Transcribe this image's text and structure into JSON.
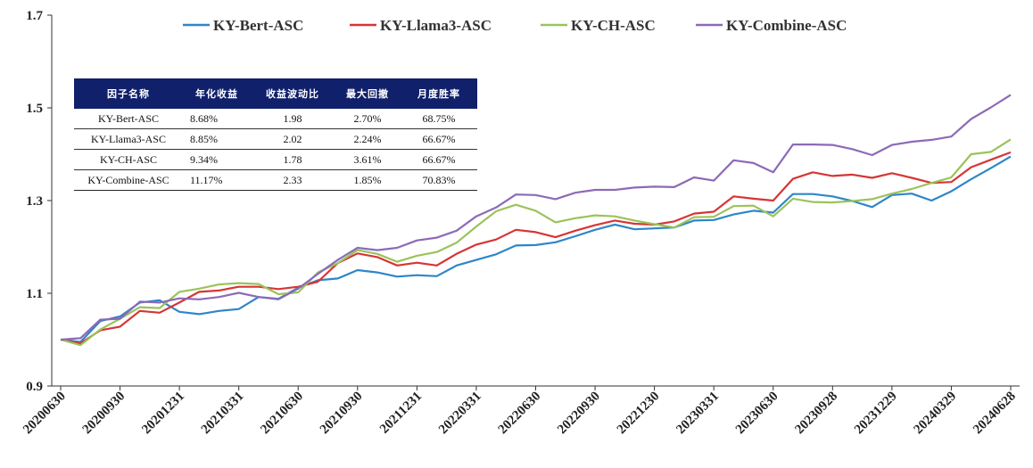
{
  "chart_data": {
    "type": "line",
    "title": "",
    "xlabel": "",
    "ylabel": "",
    "ylim": [
      0.9,
      1.7
    ],
    "yticks": [
      0.9,
      1.1,
      1.3,
      1.5,
      1.7
    ],
    "ytick_labels": [
      "0.9",
      "1.1",
      "1.3",
      "1.5",
      "1.7"
    ],
    "xtick_labels": [
      "20200630",
      "20200930",
      "20201231",
      "20210331",
      "20210630",
      "20210930",
      "20211231",
      "20220331",
      "20220630",
      "20220930",
      "20221230",
      "20230331",
      "20230630",
      "20230928",
      "20231229",
      "20240329",
      "20240628"
    ],
    "legend_position": "top",
    "grid": false,
    "n_points": 49,
    "series": [
      {
        "name": "KY-Bert-ASC",
        "color": "#2e86c8",
        "values": [
          1.0,
          0.995,
          1.04,
          1.05,
          1.08,
          1.085,
          1.06,
          1.055,
          1.062,
          1.066,
          1.092,
          1.088,
          1.112,
          1.128,
          1.132,
          1.15,
          1.145,
          1.136,
          1.139,
          1.137,
          1.16,
          1.172,
          1.184,
          1.203,
          1.204,
          1.21,
          1.223,
          1.237,
          1.248,
          1.238,
          1.24,
          1.242,
          1.257,
          1.258,
          1.27,
          1.278,
          1.274,
          1.314,
          1.314,
          1.309,
          1.299,
          1.286,
          1.312,
          1.315,
          1.3,
          1.32,
          1.346,
          1.37,
          1.395
        ]
      },
      {
        "name": "KY-Llama3-ASC",
        "color": "#d63535",
        "values": [
          1.0,
          0.992,
          1.02,
          1.028,
          1.062,
          1.058,
          1.08,
          1.103,
          1.106,
          1.114,
          1.114,
          1.109,
          1.114,
          1.125,
          1.165,
          1.186,
          1.178,
          1.16,
          1.166,
          1.16,
          1.185,
          1.205,
          1.216,
          1.237,
          1.232,
          1.221,
          1.235,
          1.247,
          1.257,
          1.25,
          1.248,
          1.255,
          1.272,
          1.276,
          1.309,
          1.304,
          1.3,
          1.347,
          1.361,
          1.353,
          1.356,
          1.349,
          1.359,
          1.349,
          1.338,
          1.34,
          1.372,
          1.388,
          1.404
        ]
      },
      {
        "name": "KY-CH-ASC",
        "color": "#9bc35a",
        "values": [
          1.0,
          0.988,
          1.022,
          1.045,
          1.07,
          1.068,
          1.103,
          1.11,
          1.119,
          1.122,
          1.12,
          1.098,
          1.102,
          1.145,
          1.165,
          1.193,
          1.185,
          1.168,
          1.181,
          1.189,
          1.209,
          1.244,
          1.277,
          1.291,
          1.278,
          1.253,
          1.262,
          1.268,
          1.266,
          1.257,
          1.249,
          1.242,
          1.264,
          1.265,
          1.288,
          1.289,
          1.266,
          1.304,
          1.297,
          1.296,
          1.299,
          1.303,
          1.315,
          1.325,
          1.338,
          1.35,
          1.4,
          1.405,
          1.432
        ]
      },
      {
        "name": "KY-Combine-ASC",
        "color": "#8c6ab7",
        "values": [
          1.0,
          1.003,
          1.043,
          1.045,
          1.082,
          1.08,
          1.089,
          1.087,
          1.092,
          1.101,
          1.092,
          1.087,
          1.11,
          1.142,
          1.172,
          1.198,
          1.193,
          1.198,
          1.214,
          1.22,
          1.235,
          1.266,
          1.285,
          1.313,
          1.312,
          1.303,
          1.317,
          1.323,
          1.323,
          1.328,
          1.33,
          1.329,
          1.35,
          1.343,
          1.387,
          1.381,
          1.361,
          1.421,
          1.421,
          1.42,
          1.411,
          1.398,
          1.42,
          1.427,
          1.431,
          1.438,
          1.476,
          1.501,
          1.528
        ]
      }
    ]
  },
  "table": {
    "headers": [
      "因子名称",
      "年化收益",
      "收益波动比",
      "最大回撤",
      "月度胜率"
    ],
    "rows": [
      [
        "KY-Bert-ASC",
        "8.68%",
        "1.98",
        "2.70%",
        "68.75%"
      ],
      [
        "KY-Llama3-ASC",
        "8.85%",
        "2.02",
        "2.24%",
        "66.67%"
      ],
      [
        "KY-CH-ASC",
        "9.34%",
        "1.78",
        "3.61%",
        "66.67%"
      ],
      [
        "KY-Combine-ASC",
        "11.17%",
        "2.33",
        "1.85%",
        "70.83%"
      ]
    ]
  }
}
